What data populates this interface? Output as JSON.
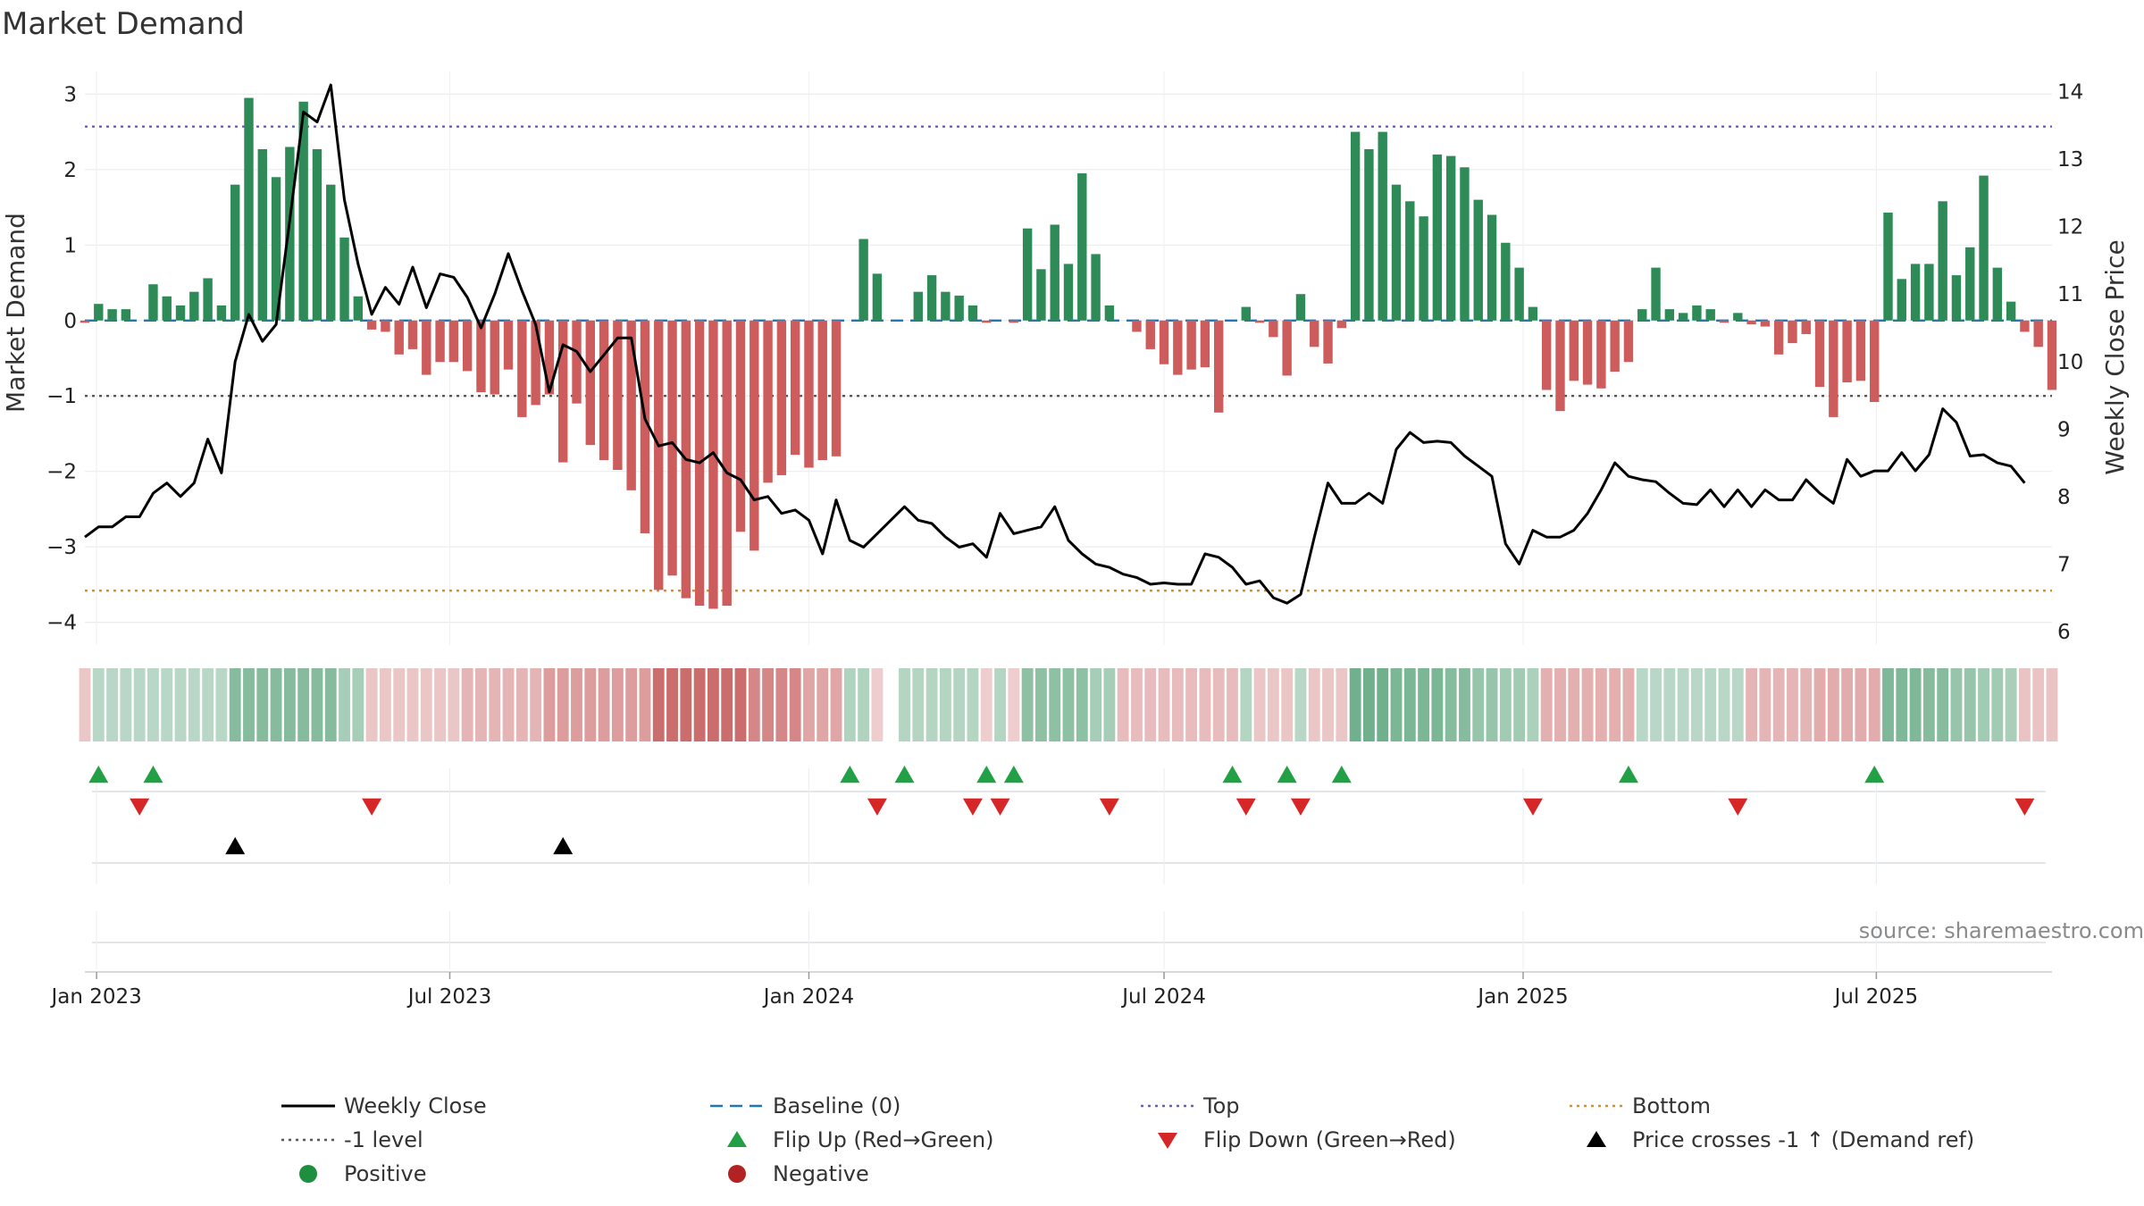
{
  "chart_data": {
    "type": "bar",
    "title": "Market Demand",
    "ylabel": "Market Demand",
    "y2label": "Weekly Close Price",
    "ylim": [
      -4.3,
      3.3
    ],
    "y2lim": [
      5.8,
      14.3
    ],
    "yticks": [
      "3",
      "2",
      "1",
      "0",
      "−1",
      "−2",
      "−3",
      "−4"
    ],
    "y2ticks": [
      "14",
      "13",
      "12",
      "11",
      "10",
      "9",
      "8",
      "7",
      "6"
    ],
    "xticks": [
      "Jan 2023",
      "Jul 2023",
      "Jan 2024",
      "Jul 2024",
      "Jan 2025",
      "Jul 2025"
    ],
    "x_start": "2022-12-26",
    "x_end": "2025-09-29",
    "grid": true,
    "colors": {
      "positive": "#2e8b57",
      "negative": "#cd5c5c",
      "close": "#000000",
      "baseline": "#1f77b4",
      "top": "#6a5acd",
      "bottom": "#e08a1e",
      "minus_one": "#555555",
      "flip_up": "#22a045",
      "flip_down": "#d62728",
      "cross": "#000000"
    },
    "reference_lines": {
      "top": 2.57,
      "bottom": -3.58,
      "minus_one": -1,
      "baseline": 0
    },
    "bar_series": {
      "name": "Market Demand",
      "values": [
        -0.03,
        0.22,
        0.15,
        0.15,
        0,
        0.48,
        0.32,
        0.2,
        0.38,
        0.56,
        0.2,
        1.8,
        2.95,
        2.27,
        1.9,
        2.3,
        2.9,
        2.27,
        1.8,
        1.1,
        0.32,
        -0.12,
        -0.15,
        -0.45,
        -0.38,
        -0.72,
        -0.55,
        -0.55,
        -0.67,
        -0.95,
        -0.98,
        -0.65,
        -1.28,
        -1.12,
        -0.98,
        -1.88,
        -1.1,
        -1.65,
        -1.85,
        -1.98,
        -2.25,
        -2.82,
        -3.57,
        -3.38,
        -3.68,
        -3.78,
        -3.82,
        -3.78,
        -2.8,
        -3.05,
        -2.15,
        -2.05,
        -1.78,
        -1.95,
        -1.85,
        -1.8,
        0,
        1.08,
        0.62,
        0,
        0,
        0.38,
        0.6,
        0.38,
        0.33,
        0.2,
        -0.03,
        0,
        -0.03,
        1.22,
        0.68,
        1.27,
        0.75,
        1.95,
        0.88,
        0.2,
        0,
        -0.15,
        -0.38,
        -0.58,
        -0.72,
        -0.65,
        -0.62,
        -1.22,
        0,
        0.18,
        -0.03,
        -0.22,
        -0.73,
        0.35,
        -0.35,
        -0.57,
        -0.1,
        2.5,
        2.27,
        2.5,
        1.8,
        1.58,
        1.38,
        2.2,
        2.18,
        2.03,
        1.6,
        1.4,
        1.03,
        0.7,
        0.18,
        -0.92,
        -1.2,
        -0.8,
        -0.85,
        -0.9,
        -0.68,
        -0.55,
        0.15,
        0.7,
        0.15,
        0.1,
        0.2,
        0.15,
        -0.03,
        0.1,
        -0.05,
        -0.08,
        -0.45,
        -0.3,
        -0.18,
        -0.88,
        -1.28,
        -0.82,
        -0.8,
        -1.08,
        1.43,
        0.55,
        0.75,
        0.75,
        1.58,
        0.6,
        0.97,
        1.92,
        0.7,
        0.25,
        -0.15,
        -0.35,
        -0.92
      ]
    },
    "line_series": {
      "name": "Weekly Close",
      "values": [
        7.4,
        7.55,
        7.55,
        7.7,
        7.7,
        8.05,
        8.2,
        8.0,
        8.2,
        8.85,
        8.35,
        10.0,
        10.7,
        10.3,
        10.55,
        12.1,
        13.7,
        13.55,
        14.1,
        12.4,
        11.45,
        10.7,
        11.1,
        10.85,
        11.4,
        10.8,
        11.3,
        11.25,
        10.95,
        10.5,
        11.0,
        11.6,
        11.05,
        10.55,
        9.55,
        10.25,
        10.15,
        9.85,
        10.1,
        10.35,
        10.35,
        9.15,
        8.75,
        8.8,
        8.55,
        8.5,
        8.65,
        8.35,
        8.25,
        7.95,
        8.0,
        7.75,
        7.8,
        7.65,
        7.15,
        7.95,
        7.35,
        7.25,
        7.45,
        7.65,
        7.85,
        7.65,
        7.6,
        7.4,
        7.25,
        7.3,
        7.1,
        7.75,
        7.45,
        7.5,
        7.55,
        7.85,
        7.35,
        7.15,
        7.0,
        6.95,
        6.85,
        6.8,
        6.7,
        6.72,
        6.7,
        6.7,
        7.15,
        7.1,
        6.95,
        6.7,
        6.75,
        6.5,
        6.42,
        6.55,
        7.4,
        8.2,
        7.9,
        7.9,
        8.05,
        7.9,
        8.7,
        8.95,
        8.8,
        8.82,
        8.8,
        8.6,
        8.45,
        8.3,
        7.3,
        7.0,
        7.5,
        7.4,
        7.4,
        7.5,
        7.75,
        8.1,
        8.5,
        8.3,
        8.25,
        8.22,
        8.05,
        7.9,
        7.88,
        8.1,
        7.85,
        8.1,
        7.85,
        8.1,
        7.95,
        7.95,
        8.25,
        8.05,
        7.9,
        8.55,
        8.3,
        8.38,
        8.38,
        8.65,
        8.38,
        8.62,
        9.3,
        9.1,
        8.6,
        8.62,
        8.5,
        8.45,
        8.2
      ]
    },
    "heat_strip": {
      "name": "Demand strip",
      "values": [
        -0.18,
        0.22,
        0.22,
        0.22,
        0.22,
        0.22,
        0.22,
        0.22,
        0.22,
        0.22,
        0.22,
        0.56,
        0.56,
        0.56,
        0.56,
        0.56,
        0.56,
        0.56,
        0.56,
        0.35,
        0.35,
        -0.18,
        -0.18,
        -0.18,
        -0.18,
        -0.18,
        -0.18,
        -0.18,
        -0.3,
        -0.3,
        -0.3,
        -0.3,
        -0.3,
        -0.3,
        -0.48,
        -0.48,
        -0.48,
        -0.48,
        -0.48,
        -0.48,
        -0.48,
        -0.48,
        -0.85,
        -0.85,
        -0.85,
        -0.85,
        -0.85,
        -0.85,
        -0.85,
        -0.65,
        -0.65,
        -0.65,
        -0.65,
        -0.42,
        -0.42,
        -0.42,
        0.28,
        0.28,
        -0.12,
        null,
        0.25,
        0.25,
        0.25,
        0.25,
        0.25,
        0.25,
        -0.12,
        0.25,
        -0.12,
        0.5,
        0.5,
        0.5,
        0.5,
        0.5,
        0.35,
        0.35,
        -0.25,
        -0.25,
        -0.25,
        -0.25,
        -0.25,
        -0.25,
        -0.25,
        -0.25,
        -0.25,
        0.25,
        -0.18,
        -0.18,
        -0.18,
        0.22,
        -0.18,
        -0.18,
        -0.18,
        0.7,
        0.7,
        0.7,
        0.62,
        0.62,
        0.62,
        0.62,
        0.55,
        0.55,
        0.45,
        0.45,
        0.38,
        0.38,
        0.3,
        -0.35,
        -0.35,
        -0.35,
        -0.35,
        -0.35,
        -0.35,
        -0.35,
        0.22,
        0.22,
        0.22,
        0.22,
        0.22,
        0.22,
        0.22,
        0.22,
        -0.3,
        -0.3,
        -0.3,
        -0.3,
        -0.3,
        -0.38,
        -0.38,
        -0.38,
        -0.38,
        -0.38,
        0.6,
        0.6,
        0.6,
        0.55,
        0.55,
        0.45,
        0.45,
        0.38,
        0.38,
        0.32,
        -0.2,
        -0.2,
        -0.2
      ]
    },
    "flip_up_idx": [
      1,
      5,
      56,
      60,
      66,
      68,
      84,
      88,
      92,
      113,
      131
    ],
    "flip_down_idx": [
      4,
      21,
      58,
      65,
      67,
      75,
      85,
      89,
      106,
      121,
      142
    ],
    "cross_up_idx": [
      11,
      35
    ],
    "legend": [
      "Weekly Close",
      "Baseline (0)",
      "Top",
      "Bottom",
      "-1 level",
      "Flip Up (Red→Green)",
      "Flip Down (Green→Red)",
      "Price crosses -1 ↑ (Demand ref)",
      "Positive",
      "Negative"
    ],
    "source": "source: sharemaestro.com"
  }
}
